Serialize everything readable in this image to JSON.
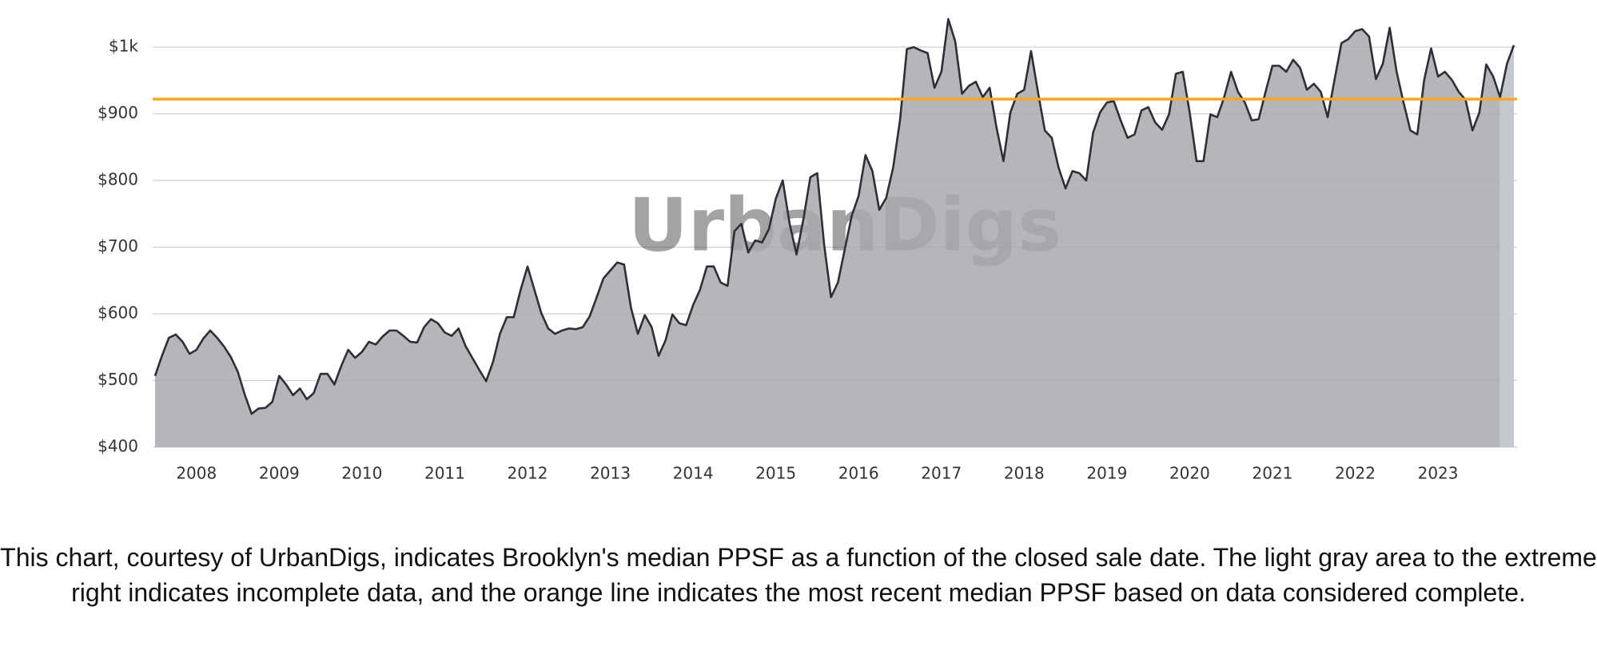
{
  "chart_data": {
    "type": "area",
    "watermark": "UrbanDigs",
    "categories": [
      null,
      null,
      null,
      null,
      null,
      null,
      "2008",
      null,
      null,
      null,
      null,
      null,
      null,
      null,
      null,
      null,
      null,
      null,
      "2009",
      null,
      null,
      null,
      null,
      null,
      null,
      null,
      null,
      null,
      null,
      null,
      "2010",
      null,
      null,
      null,
      null,
      null,
      null,
      null,
      null,
      null,
      null,
      null,
      "2011",
      null,
      null,
      null,
      null,
      null,
      null,
      null,
      null,
      null,
      null,
      null,
      "2012",
      null,
      null,
      null,
      null,
      null,
      null,
      null,
      null,
      null,
      null,
      null,
      "2013",
      null,
      null,
      null,
      null,
      null,
      null,
      null,
      null,
      null,
      null,
      null,
      "2014",
      null,
      null,
      null,
      null,
      null,
      null,
      null,
      null,
      null,
      null,
      null,
      "2015",
      null,
      null,
      null,
      null,
      null,
      null,
      null,
      null,
      null,
      null,
      null,
      "2016",
      null,
      null,
      null,
      null,
      null,
      null,
      null,
      null,
      null,
      null,
      null,
      "2017",
      null,
      null,
      null,
      null,
      null,
      null,
      null,
      null,
      null,
      null,
      null,
      "2018",
      null,
      null,
      null,
      null,
      null,
      null,
      null,
      null,
      null,
      null,
      null,
      "2019",
      null,
      null,
      null,
      null,
      null,
      null,
      null,
      null,
      null,
      null,
      null,
      "2020",
      null,
      null,
      null,
      null,
      null,
      null,
      null,
      null,
      null,
      null,
      null,
      "2021",
      null,
      null,
      null,
      null,
      null,
      null,
      null,
      null,
      null,
      null,
      null,
      "2022",
      null,
      null,
      null,
      null,
      null,
      null,
      null,
      null,
      null,
      null,
      null,
      "2023",
      null,
      null,
      null,
      null,
      null,
      null,
      null,
      null,
      null,
      null,
      null
    ],
    "values": [
      507,
      537,
      564,
      569,
      558,
      540,
      546,
      563,
      575,
      564,
      551,
      535,
      513,
      479,
      450,
      458,
      459,
      468,
      507,
      494,
      478,
      488,
      472,
      481,
      510,
      510,
      494,
      522,
      546,
      534,
      543,
      558,
      554,
      566,
      575,
      575,
      567,
      558,
      557,
      580,
      592,
      586,
      572,
      567,
      578,
      552,
      534,
      516,
      499,
      528,
      570,
      595,
      595,
      636,
      671,
      636,
      601,
      578,
      570,
      575,
      578,
      577,
      580,
      596,
      624,
      653,
      665,
      677,
      674,
      609,
      570,
      598,
      580,
      537,
      560,
      599,
      586,
      583,
      613,
      636,
      671,
      671,
      647,
      642,
      724,
      735,
      692,
      710,
      707,
      727,
      773,
      800,
      735,
      689,
      742,
      805,
      811,
      704,
      625,
      647,
      697,
      747,
      777,
      838,
      814,
      756,
      774,
      819,
      890,
      997,
      1000,
      995,
      991,
      939,
      963,
      1042,
      1009,
      930,
      942,
      948,
      925,
      939,
      879,
      829,
      902,
      930,
      936,
      994,
      933,
      875,
      864,
      819,
      788,
      814,
      811,
      800,
      872,
      902,
      917,
      919,
      890,
      864,
      869,
      905,
      910,
      887,
      876,
      899,
      960,
      963,
      902,
      829,
      829,
      899,
      895,
      925,
      963,
      933,
      917,
      890,
      892,
      933,
      972,
      972,
      963,
      981,
      969,
      936,
      945,
      933,
      895,
      951,
      1006,
      1012,
      1024,
      1027,
      1016,
      952,
      975,
      1029,
      963,
      917,
      875,
      869,
      951,
      998,
      956,
      963,
      951,
      933,
      921,
      875,
      902,
      974,
      956,
      925,
      975,
      1003
    ],
    "color": "#a9a8ae",
    "line_color": "#2e2e38",
    "incomplete_from": 195,
    "incomplete_color": "#c3c9ce",
    "reference_line": 922,
    "reference_color": "#f5a623",
    "ylim": [
      400,
      1000
    ],
    "yticks": [
      {
        "value": 400,
        "label": "$400"
      },
      {
        "value": 500,
        "label": "$500"
      },
      {
        "value": 600,
        "label": "$600"
      },
      {
        "value": 700,
        "label": "$700"
      },
      {
        "value": 800,
        "label": "$800"
      },
      {
        "value": 900,
        "label": "$900"
      },
      {
        "value": 1000,
        "label": "$1k"
      }
    ],
    "grid": true
  },
  "caption": "This chart, courtesy of UrbanDigs, indicates Brooklyn's median PPSF as a function of the closed sale date. The light gray area to the extreme right indicates incomplete data, and the orange line indicates the most recent median PPSF based on data considered complete."
}
